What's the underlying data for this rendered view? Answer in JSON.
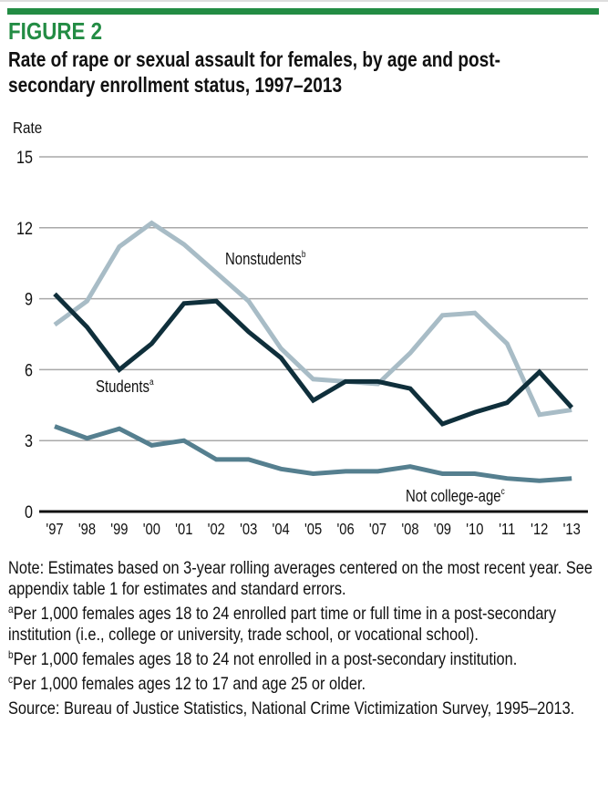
{
  "figure_label": "FIGURE 2",
  "title": "Rate of rape or sexual assault for females, by age and post-secondary enrollment status, 1997–2013",
  "colors": {
    "brand_green": "#238c44",
    "students": "#0f2f3b",
    "nonstudents": "#a8bcc6",
    "not_college_age": "#557f8f",
    "grid": "#a9a9a9",
    "axis": "#111111"
  },
  "chart_data": {
    "type": "line",
    "title": "Rate of rape or sexual assault for females, by age and post-secondary enrollment status, 1997–2013",
    "xlabel": "",
    "ylabel": "Rate",
    "x": [
      "'97",
      "'98",
      "'99",
      "'00",
      "'01",
      "'02",
      "'03",
      "'04",
      "'05",
      "'06",
      "'07",
      "'08",
      "'09",
      "'10",
      "'11",
      "'12",
      "'13"
    ],
    "ylim": [
      0,
      15
    ],
    "yticks": [
      0,
      3,
      6,
      9,
      12,
      15
    ],
    "grid": true,
    "legend": "inline labels",
    "series": [
      {
        "key": "nonstudents",
        "name": "Nonstudents",
        "footnote": "b",
        "values": [
          7.9,
          8.9,
          11.2,
          12.2,
          11.3,
          10.1,
          8.9,
          6.9,
          5.6,
          5.5,
          5.4,
          6.7,
          8.3,
          8.4,
          7.1,
          4.1,
          4.3
        ]
      },
      {
        "key": "students",
        "name": "Students",
        "footnote": "a",
        "values": [
          9.2,
          7.8,
          6.0,
          7.1,
          8.8,
          8.9,
          7.6,
          6.5,
          4.7,
          5.5,
          5.5,
          5.2,
          3.7,
          4.2,
          4.6,
          5.9,
          4.4
        ]
      },
      {
        "key": "not_college_age",
        "name": "Not college-age",
        "footnote": "c",
        "values": [
          3.6,
          3.1,
          3.5,
          2.8,
          3.0,
          2.2,
          2.2,
          1.8,
          1.6,
          1.7,
          1.7,
          1.9,
          1.6,
          1.6,
          1.4,
          1.3,
          1.4
        ]
      }
    ]
  },
  "notes": {
    "note": "Note: Estimates based on 3-year rolling averages centered on the most recent year. See appendix table 1 for estimates and standard errors.",
    "footnote_a_marker": "a",
    "footnote_a": "Per 1,000 females ages 18 to 24 enrolled part time or full time in a post-secondary institution (i.e., college or university, trade school, or vocational school).",
    "footnote_b_marker": "b",
    "footnote_b": "Per 1,000 females ages 18 to 24 not enrolled in a post-secondary institution.",
    "footnote_c_marker": "c",
    "footnote_c": "Per 1,000 females ages 12 to 17 and age 25 or older.",
    "source": "Source: Bureau of Justice Statistics, National Crime Victimization Survey, 1995–2013."
  }
}
